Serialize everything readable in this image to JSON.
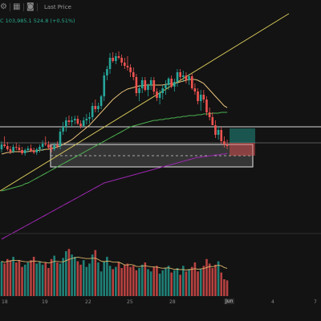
{
  "toolbar": {
    "icons": [
      "chart-settings-icon",
      "table-icon",
      "camera-icon"
    ],
    "price_mode_label": "Last Price"
  },
  "ohlc_readout": "C 103,985.1  524.8 (+0.51%)",
  "colors": {
    "background": "#131313",
    "up": "#26a69a",
    "down": "#ef5350",
    "trendline": "#d6c85a",
    "ma_short": "#e8c07a",
    "ma_mid": "#4caf50",
    "ma_long": "#9c27b0"
  },
  "x_axis": {
    "labels": [
      "18",
      "19",
      "22",
      "25",
      "28",
      "Jun",
      "4",
      "7"
    ],
    "highlighted": "Jun"
  },
  "chart_data": {
    "type": "candlestick",
    "candles": [
      {
        "o": 186,
        "h": 190,
        "l": 176,
        "c": 180
      },
      {
        "o": 180,
        "h": 184,
        "l": 170,
        "c": 182
      },
      {
        "o": 182,
        "h": 188,
        "l": 177,
        "c": 186
      },
      {
        "o": 186,
        "h": 192,
        "l": 182,
        "c": 189
      },
      {
        "o": 189,
        "h": 191,
        "l": 180,
        "c": 183
      },
      {
        "o": 183,
        "h": 187,
        "l": 178,
        "c": 184
      },
      {
        "o": 184,
        "h": 190,
        "l": 180,
        "c": 187
      },
      {
        "o": 187,
        "h": 193,
        "l": 183,
        "c": 191
      },
      {
        "o": 191,
        "h": 194,
        "l": 185,
        "c": 187
      },
      {
        "o": 187,
        "h": 190,
        "l": 182,
        "c": 185
      },
      {
        "o": 185,
        "h": 190,
        "l": 180,
        "c": 188
      },
      {
        "o": 188,
        "h": 192,
        "l": 184,
        "c": 190
      },
      {
        "o": 190,
        "h": 193,
        "l": 184,
        "c": 186
      },
      {
        "o": 186,
        "h": 190,
        "l": 180,
        "c": 183
      },
      {
        "o": 183,
        "h": 188,
        "l": 175,
        "c": 179
      },
      {
        "o": 179,
        "h": 182,
        "l": 170,
        "c": 180
      },
      {
        "o": 180,
        "h": 186,
        "l": 176,
        "c": 184
      },
      {
        "o": 184,
        "h": 190,
        "l": 180,
        "c": 186
      },
      {
        "o": 186,
        "h": 188,
        "l": 178,
        "c": 181
      },
      {
        "o": 181,
        "h": 185,
        "l": 176,
        "c": 182
      },
      {
        "o": 182,
        "h": 186,
        "l": 160,
        "c": 164
      },
      {
        "o": 164,
        "h": 168,
        "l": 152,
        "c": 158
      },
      {
        "o": 158,
        "h": 164,
        "l": 146,
        "c": 150
      },
      {
        "o": 150,
        "h": 156,
        "l": 144,
        "c": 152
      },
      {
        "o": 152,
        "h": 158,
        "l": 145,
        "c": 150
      },
      {
        "o": 150,
        "h": 155,
        "l": 144,
        "c": 148
      },
      {
        "o": 148,
        "h": 156,
        "l": 144,
        "c": 154
      },
      {
        "o": 154,
        "h": 160,
        "l": 150,
        "c": 157
      },
      {
        "o": 157,
        "h": 158,
        "l": 146,
        "c": 150
      },
      {
        "o": 150,
        "h": 155,
        "l": 142,
        "c": 148
      },
      {
        "o": 148,
        "h": 154,
        "l": 140,
        "c": 146
      },
      {
        "o": 146,
        "h": 150,
        "l": 128,
        "c": 132
      },
      {
        "o": 132,
        "h": 140,
        "l": 124,
        "c": 136
      },
      {
        "o": 136,
        "h": 140,
        "l": 128,
        "c": 132
      },
      {
        "o": 132,
        "h": 136,
        "l": 118,
        "c": 120
      },
      {
        "o": 120,
        "h": 126,
        "l": 90,
        "c": 94
      },
      {
        "o": 94,
        "h": 100,
        "l": 82,
        "c": 86
      },
      {
        "o": 86,
        "h": 92,
        "l": 66,
        "c": 72
      },
      {
        "o": 72,
        "h": 78,
        "l": 65,
        "c": 76
      },
      {
        "o": 76,
        "h": 80,
        "l": 66,
        "c": 70
      },
      {
        "o": 70,
        "h": 74,
        "l": 64,
        "c": 72
      },
      {
        "o": 72,
        "h": 82,
        "l": 68,
        "c": 78
      },
      {
        "o": 78,
        "h": 86,
        "l": 72,
        "c": 82
      },
      {
        "o": 82,
        "h": 88,
        "l": 70,
        "c": 84
      },
      {
        "o": 84,
        "h": 96,
        "l": 80,
        "c": 90
      },
      {
        "o": 90,
        "h": 100,
        "l": 84,
        "c": 96
      },
      {
        "o": 96,
        "h": 120,
        "l": 92,
        "c": 116
      },
      {
        "o": 116,
        "h": 126,
        "l": 106,
        "c": 110
      },
      {
        "o": 110,
        "h": 116,
        "l": 96,
        "c": 100
      },
      {
        "o": 100,
        "h": 114,
        "l": 96,
        "c": 112
      },
      {
        "o": 112,
        "h": 120,
        "l": 104,
        "c": 106
      },
      {
        "o": 106,
        "h": 112,
        "l": 96,
        "c": 100
      },
      {
        "o": 100,
        "h": 118,
        "l": 96,
        "c": 114
      },
      {
        "o": 114,
        "h": 126,
        "l": 110,
        "c": 122
      },
      {
        "o": 122,
        "h": 130,
        "l": 112,
        "c": 116
      },
      {
        "o": 116,
        "h": 124,
        "l": 106,
        "c": 110
      },
      {
        "o": 110,
        "h": 118,
        "l": 100,
        "c": 106
      },
      {
        "o": 106,
        "h": 112,
        "l": 96,
        "c": 98
      },
      {
        "o": 98,
        "h": 110,
        "l": 94,
        "c": 108
      },
      {
        "o": 108,
        "h": 114,
        "l": 98,
        "c": 102
      },
      {
        "o": 102,
        "h": 108,
        "l": 86,
        "c": 90
      },
      {
        "o": 90,
        "h": 100,
        "l": 86,
        "c": 96
      },
      {
        "o": 96,
        "h": 102,
        "l": 88,
        "c": 94
      },
      {
        "o": 94,
        "h": 104,
        "l": 90,
        "c": 100
      },
      {
        "o": 100,
        "h": 106,
        "l": 92,
        "c": 95
      },
      {
        "o": 95,
        "h": 112,
        "l": 92,
        "c": 110
      },
      {
        "o": 110,
        "h": 118,
        "l": 104,
        "c": 114
      },
      {
        "o": 114,
        "h": 130,
        "l": 110,
        "c": 126
      },
      {
        "o": 126,
        "h": 138,
        "l": 112,
        "c": 118
      },
      {
        "o": 118,
        "h": 128,
        "l": 112,
        "c": 124
      },
      {
        "o": 124,
        "h": 144,
        "l": 120,
        "c": 140
      },
      {
        "o": 140,
        "h": 150,
        "l": 134,
        "c": 146
      },
      {
        "o": 146,
        "h": 156,
        "l": 140,
        "c": 156
      },
      {
        "o": 156,
        "h": 172,
        "l": 150,
        "c": 168
      },
      {
        "o": 168,
        "h": 174,
        "l": 158,
        "c": 162
      },
      {
        "o": 162,
        "h": 180,
        "l": 158,
        "c": 176
      },
      {
        "o": 176,
        "h": 184,
        "l": 170,
        "c": 180
      },
      {
        "o": 180,
        "h": 186,
        "l": 174,
        "c": 182
      }
    ],
    "volumes": [
      62,
      58,
      66,
      64,
      70,
      60,
      64,
      52,
      56,
      60,
      64,
      70,
      58,
      62,
      56,
      60,
      50,
      66,
      72,
      60,
      58,
      68,
      80,
      84,
      74,
      70,
      62,
      56,
      64,
      52,
      58,
      74,
      82,
      60,
      44,
      62,
      70,
      54,
      48,
      52,
      60,
      50,
      56,
      58,
      52,
      54,
      46,
      50,
      56,
      60,
      48,
      44,
      52,
      54,
      40,
      46,
      50,
      54,
      42,
      46,
      50,
      38,
      54,
      44,
      48,
      52,
      60,
      44,
      48,
      54,
      66,
      58,
      50,
      56,
      62,
      42,
      30,
      28
    ],
    "sma20": [
      192,
      191,
      190,
      190,
      189,
      189,
      189,
      189,
      189,
      189,
      188,
      188,
      188,
      187,
      187,
      186,
      186,
      185,
      184,
      183,
      182,
      180,
      178,
      176,
      174,
      171,
      168,
      165,
      162,
      159,
      156,
      152,
      148,
      144,
      140,
      136,
      132,
      128,
      124,
      121,
      118,
      115,
      113,
      111,
      110,
      109,
      108,
      107,
      107,
      106,
      106,
      106,
      106,
      106,
      106,
      106,
      105,
      105,
      104,
      104,
      103,
      102,
      101,
      100,
      99,
      99,
      99,
      100,
      102,
      104,
      108,
      112,
      116,
      120,
      124,
      128,
      132,
      134
    ],
    "sma50": [
      238,
      237,
      236,
      235,
      234,
      233,
      232,
      231,
      229,
      228,
      226,
      224,
      222,
      220,
      218,
      216,
      214,
      212,
      210,
      208,
      206,
      204,
      202,
      200,
      198,
      196,
      194,
      192,
      190,
      188,
      186,
      184,
      182,
      180,
      178,
      176,
      174,
      172,
      170,
      168,
      166,
      164,
      162,
      160,
      158,
      157,
      156,
      155,
      154,
      153,
      152,
      151,
      150,
      150,
      149,
      149,
      148,
      148,
      147,
      147,
      146,
      146,
      145,
      145,
      144,
      144,
      144,
      143,
      143,
      142,
      142,
      142,
      141,
      141,
      141,
      140,
      140,
      140
    ],
    "sma200": [
      298,
      296,
      294,
      292,
      290,
      288,
      286,
      284,
      282,
      280,
      278,
      276,
      274,
      272,
      270,
      268,
      266,
      264,
      262,
      260,
      258,
      256,
      254,
      252,
      250,
      248,
      246,
      244,
      242,
      240,
      238,
      236,
      234,
      232,
      230,
      228,
      227,
      226,
      225,
      224,
      223,
      222,
      221,
      220,
      219,
      218,
      217,
      216,
      215,
      214,
      213,
      212,
      211,
      210,
      209,
      208,
      207,
      206,
      205,
      204,
      203,
      202,
      201,
      200,
      199,
      198,
      197,
      196,
      196,
      195,
      195,
      194,
      194,
      193,
      193,
      192,
      192,
      191
    ]
  }
}
